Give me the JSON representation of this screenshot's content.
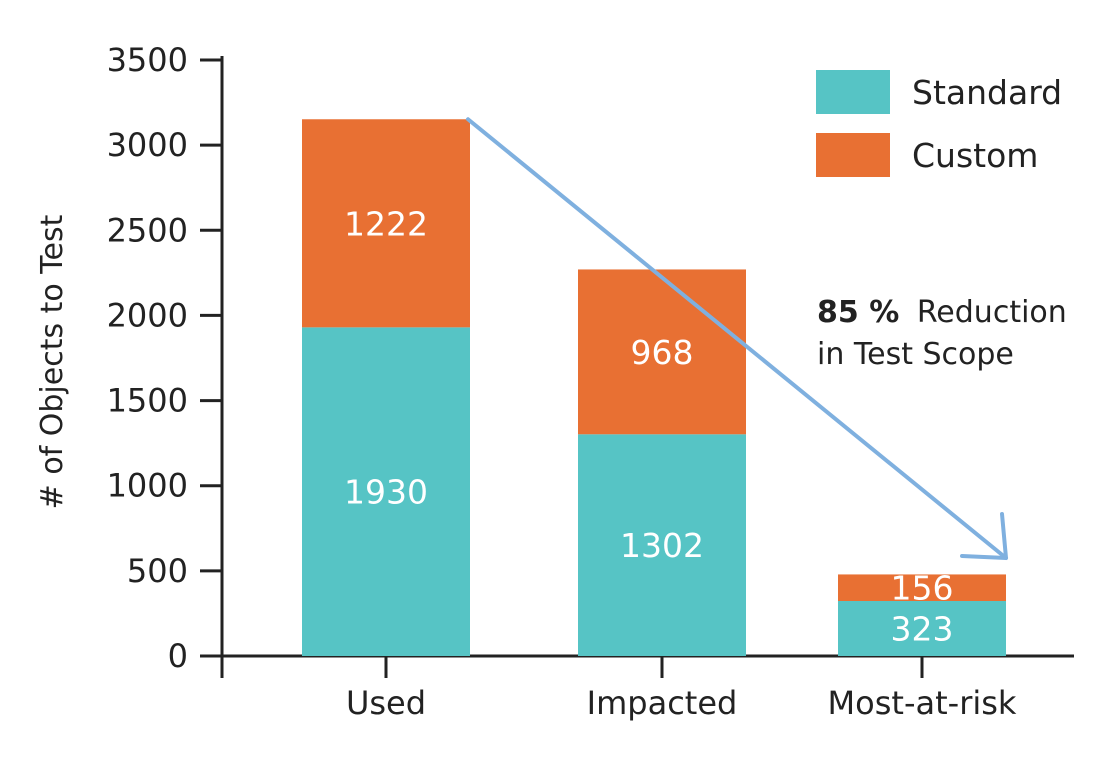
{
  "chart_data": {
    "type": "bar",
    "stacked": true,
    "categories": [
      "Used",
      "Impacted",
      "Most-at-risk"
    ],
    "series": [
      {
        "name": "Standard",
        "values": [
          1930,
          1302,
          323
        ]
      },
      {
        "name": "Custom",
        "values": [
          1222,
          968,
          156
        ]
      }
    ],
    "bar_labels": [
      [
        "1930",
        "1302",
        "323"
      ],
      [
        "1222",
        "968",
        "156"
      ]
    ],
    "ylabel": "# of Objects to Test",
    "ylim": [
      0,
      3500
    ],
    "yticks": [
      0,
      500,
      1000,
      1500,
      2000,
      2500,
      3000,
      3500
    ],
    "grid": false,
    "legend_position": "top-right",
    "annotation": {
      "bold": "85 %",
      "text": "Reduction",
      "line2": "in Test Scope"
    }
  },
  "colors": {
    "standard": "#56C4C5",
    "custom": "#E87033",
    "arrow": "#7FB0DF",
    "axis": "#222222"
  }
}
